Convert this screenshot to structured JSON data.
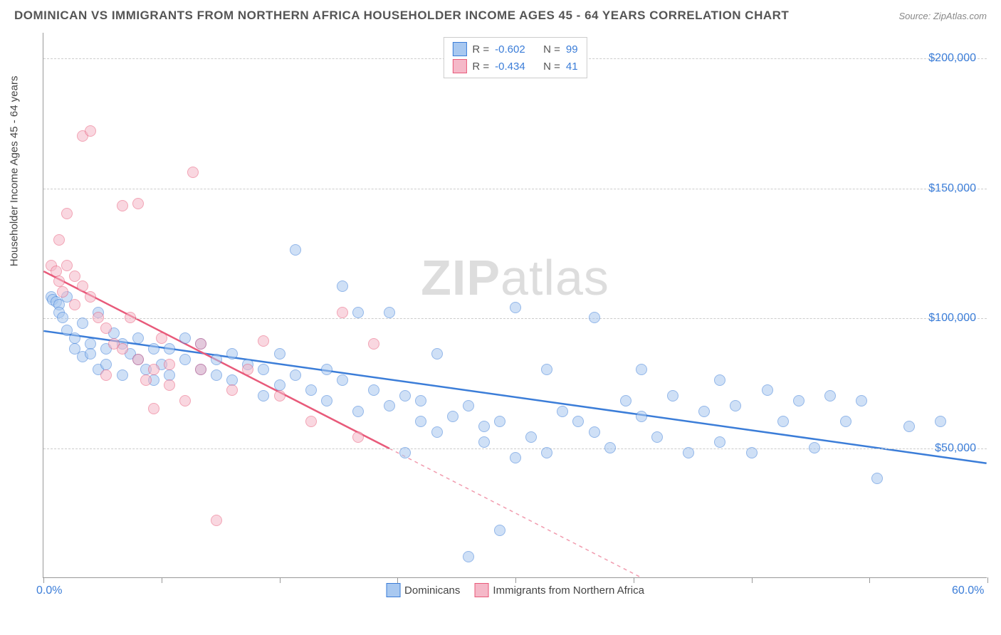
{
  "title": "DOMINICAN VS IMMIGRANTS FROM NORTHERN AFRICA HOUSEHOLDER INCOME AGES 45 - 64 YEARS CORRELATION CHART",
  "source": "Source: ZipAtlas.com",
  "y_axis_title": "Householder Income Ages 45 - 64 years",
  "watermark_a": "ZIP",
  "watermark_b": "atlas",
  "chart": {
    "xlim": [
      0,
      60
    ],
    "ylim": [
      0,
      210000
    ],
    "x_ticks": [
      0,
      7.5,
      15,
      22.5,
      30,
      37.5,
      45,
      52.5,
      60
    ],
    "x_tick_labels": {
      "0": "0.0%",
      "60": "60.0%"
    },
    "y_ticks": [
      50000,
      100000,
      150000,
      200000
    ],
    "y_tick_labels": [
      "$50,000",
      "$100,000",
      "$150,000",
      "$200,000"
    ],
    "background_color": "#ffffff",
    "grid_color": "#cccccc",
    "axis_color": "#999999",
    "tick_label_color": "#3b7dd8",
    "point_radius": 8,
    "point_opacity": 0.55
  },
  "series": [
    {
      "name": "Dominicans",
      "color_stroke": "#3b7dd8",
      "color_fill": "#a8c8f0",
      "R": "-0.602",
      "N": "99",
      "trend": {
        "x1": 0,
        "y1": 95000,
        "x2": 60,
        "y2": 44000,
        "solid_until_x": 60
      },
      "points": [
        [
          0.5,
          108000
        ],
        [
          0.6,
          107000
        ],
        [
          0.8,
          106000
        ],
        [
          1,
          105000
        ],
        [
          1,
          102000
        ],
        [
          1.2,
          100000
        ],
        [
          1.5,
          108000
        ],
        [
          1.5,
          95000
        ],
        [
          2,
          92000
        ],
        [
          2,
          88000
        ],
        [
          2.5,
          85000
        ],
        [
          2.5,
          98000
        ],
        [
          3,
          90000
        ],
        [
          3,
          86000
        ],
        [
          3.5,
          102000
        ],
        [
          3.5,
          80000
        ],
        [
          4,
          88000
        ],
        [
          4,
          82000
        ],
        [
          4.5,
          94000
        ],
        [
          5,
          90000
        ],
        [
          5,
          78000
        ],
        [
          5.5,
          86000
        ],
        [
          6,
          84000
        ],
        [
          6,
          92000
        ],
        [
          6.5,
          80000
        ],
        [
          7,
          88000
        ],
        [
          7,
          76000
        ],
        [
          7.5,
          82000
        ],
        [
          8,
          78000
        ],
        [
          8,
          88000
        ],
        [
          9,
          92000
        ],
        [
          9,
          84000
        ],
        [
          10,
          80000
        ],
        [
          10,
          90000
        ],
        [
          11,
          78000
        ],
        [
          11,
          84000
        ],
        [
          12,
          76000
        ],
        [
          12,
          86000
        ],
        [
          13,
          82000
        ],
        [
          14,
          80000
        ],
        [
          14,
          70000
        ],
        [
          15,
          86000
        ],
        [
          15,
          74000
        ],
        [
          16,
          78000
        ],
        [
          16,
          126000
        ],
        [
          17,
          72000
        ],
        [
          18,
          68000
        ],
        [
          18,
          80000
        ],
        [
          19,
          112000
        ],
        [
          19,
          76000
        ],
        [
          20,
          102000
        ],
        [
          20,
          64000
        ],
        [
          21,
          72000
        ],
        [
          22,
          102000
        ],
        [
          22,
          66000
        ],
        [
          23,
          70000
        ],
        [
          23,
          48000
        ],
        [
          24,
          60000
        ],
        [
          24,
          68000
        ],
        [
          25,
          86000
        ],
        [
          25,
          56000
        ],
        [
          26,
          62000
        ],
        [
          27,
          66000
        ],
        [
          27,
          8000
        ],
        [
          28,
          58000
        ],
        [
          28,
          52000
        ],
        [
          29,
          60000
        ],
        [
          29,
          18000
        ],
        [
          30,
          46000
        ],
        [
          30,
          104000
        ],
        [
          31,
          54000
        ],
        [
          32,
          80000
        ],
        [
          32,
          48000
        ],
        [
          33,
          64000
        ],
        [
          34,
          60000
        ],
        [
          35,
          100000
        ],
        [
          35,
          56000
        ],
        [
          36,
          50000
        ],
        [
          37,
          68000
        ],
        [
          38,
          80000
        ],
        [
          38,
          62000
        ],
        [
          39,
          54000
        ],
        [
          40,
          70000
        ],
        [
          41,
          48000
        ],
        [
          42,
          64000
        ],
        [
          43,
          76000
        ],
        [
          43,
          52000
        ],
        [
          44,
          66000
        ],
        [
          45,
          48000
        ],
        [
          46,
          72000
        ],
        [
          47,
          60000
        ],
        [
          48,
          68000
        ],
        [
          49,
          50000
        ],
        [
          50,
          70000
        ],
        [
          51,
          60000
        ],
        [
          52,
          68000
        ],
        [
          53,
          38000
        ],
        [
          55,
          58000
        ],
        [
          57,
          60000
        ]
      ]
    },
    {
      "name": "Immigrants from Northern Africa",
      "color_stroke": "#e85a7a",
      "color_fill": "#f5b8c8",
      "R": "-0.434",
      "N": "41",
      "trend": {
        "x1": 0,
        "y1": 118000,
        "x2": 38,
        "y2": 0,
        "solid_until_x": 22
      },
      "points": [
        [
          0.5,
          120000
        ],
        [
          0.8,
          118000
        ],
        [
          1,
          114000
        ],
        [
          1,
          130000
        ],
        [
          1.2,
          110000
        ],
        [
          1.5,
          120000
        ],
        [
          1.5,
          140000
        ],
        [
          2,
          116000
        ],
        [
          2,
          105000
        ],
        [
          2.5,
          112000
        ],
        [
          2.5,
          170000
        ],
        [
          3,
          108000
        ],
        [
          3,
          172000
        ],
        [
          3.5,
          100000
        ],
        [
          4,
          96000
        ],
        [
          4,
          78000
        ],
        [
          4.5,
          90000
        ],
        [
          5,
          143000
        ],
        [
          5,
          88000
        ],
        [
          5.5,
          100000
        ],
        [
          6,
          144000
        ],
        [
          6,
          84000
        ],
        [
          6.5,
          76000
        ],
        [
          7,
          65000
        ],
        [
          7,
          80000
        ],
        [
          7.5,
          92000
        ],
        [
          8,
          74000
        ],
        [
          8,
          82000
        ],
        [
          9,
          68000
        ],
        [
          9.5,
          156000
        ],
        [
          10,
          80000
        ],
        [
          10,
          90000
        ],
        [
          11,
          22000
        ],
        [
          12,
          72000
        ],
        [
          13,
          80000
        ],
        [
          14,
          91000
        ],
        [
          15,
          70000
        ],
        [
          17,
          60000
        ],
        [
          19,
          102000
        ],
        [
          20,
          54000
        ],
        [
          21,
          90000
        ]
      ]
    }
  ],
  "legend_top": {
    "R_label": "R =",
    "N_label": "N ="
  },
  "legend_bottom": [
    {
      "label": "Dominicans",
      "fill": "#a8c8f0",
      "stroke": "#3b7dd8"
    },
    {
      "label": "Immigrants from Northern Africa",
      "fill": "#f5b8c8",
      "stroke": "#e85a7a"
    }
  ]
}
